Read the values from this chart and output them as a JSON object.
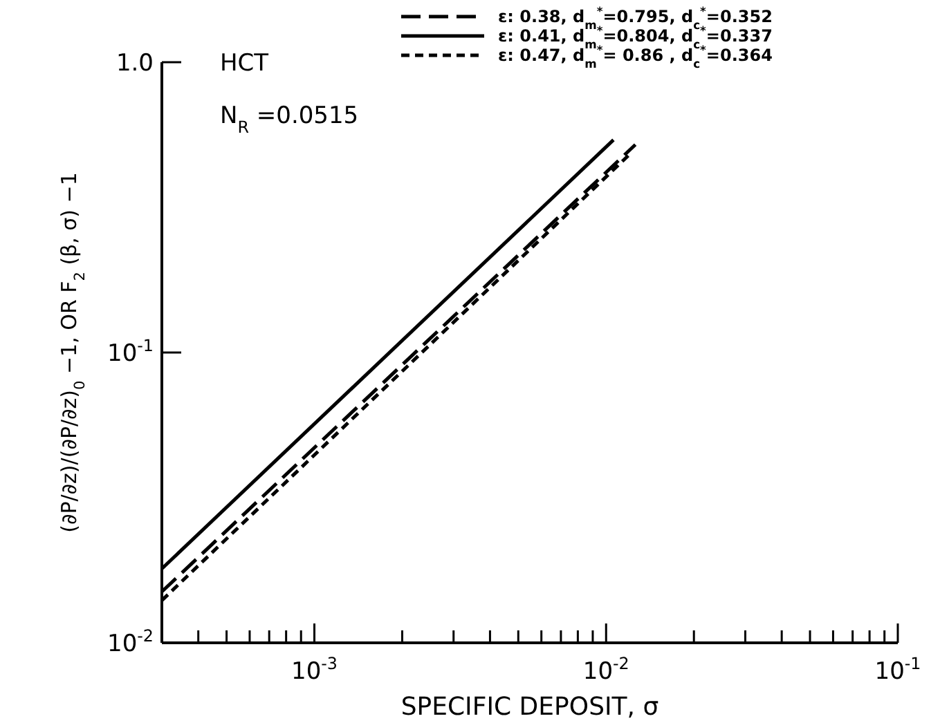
{
  "chart_data": {
    "type": "line",
    "xlabel": "SPECIFIC DEPOSIT, σ",
    "ylabel": "(∂P/∂z)/(∂P/∂z)$_{0}$ −1, OR F$_{2}$ (β, σ) −1",
    "log": "xy",
    "xlim": [
      0.0003,
      0.1
    ],
    "ylim": [
      0.01,
      1
    ],
    "xticks": [
      {
        "value": 0.0004,
        "label": null
      },
      {
        "value": 0.0005,
        "label": null
      },
      {
        "value": 0.0006,
        "label": null
      },
      {
        "value": 0.0007,
        "label": null
      },
      {
        "value": 0.0008,
        "label": null
      },
      {
        "value": 0.0009,
        "label": null
      },
      {
        "value": 0.001,
        "label": "10$^{-3}$"
      },
      {
        "value": 0.002,
        "label": null
      },
      {
        "value": 0.003,
        "label": null
      },
      {
        "value": 0.004,
        "label": null
      },
      {
        "value": 0.005,
        "label": null
      },
      {
        "value": 0.006,
        "label": null
      },
      {
        "value": 0.007,
        "label": null
      },
      {
        "value": 0.008,
        "label": null
      },
      {
        "value": 0.009,
        "label": null
      },
      {
        "value": 0.01,
        "label": "10$^{-2}$"
      },
      {
        "value": 0.02,
        "label": null
      },
      {
        "value": 0.03,
        "label": null
      },
      {
        "value": 0.04,
        "label": null
      },
      {
        "value": 0.05,
        "label": null
      },
      {
        "value": 0.06,
        "label": null
      },
      {
        "value": 0.07,
        "label": null
      },
      {
        "value": 0.08,
        "label": null
      },
      {
        "value": 0.09,
        "label": null
      },
      {
        "value": 0.1,
        "label": "10$^{-1}$"
      }
    ],
    "yticks": [
      {
        "value": 0.01,
        "label": "10$^{-2}$"
      },
      {
        "value": 0.1,
        "label": "10$^{-1}$"
      },
      {
        "value": 1,
        "label": "1.0"
      }
    ],
    "grid": false,
    "legend": "top right",
    "annotations": [
      "HCT",
      "N$_{R}$ =0.0515"
    ],
    "series": [
      {
        "name": "ε: 0.38, d$_{m}$$^{*}$=0.795, d$_{c}$$^{*}$=0.352",
        "color": "#000000",
        "line_style": "dashed",
        "x": [
          0.0003,
          0.0126
        ],
        "values": [
          0.015,
          0.52
        ]
      },
      {
        "name": "ε: 0.41, d$_{m}$$^{*}$=0.804, d$_{c}$$^{*}$=0.337",
        "color": "#000000",
        "line_style": "solid",
        "x": [
          0.0003,
          0.0106
        ],
        "values": [
          0.018,
          0.54
        ]
      },
      {
        "name": "ε: 0.47, d$_{m}$$^{*}$= 0.86 , d$_{c}$$^{*}$=0.364",
        "color": "#000000",
        "line_style": "dotted",
        "x": [
          0.0003,
          0.012
        ],
        "values": [
          0.014,
          0.48
        ]
      }
    ]
  }
}
